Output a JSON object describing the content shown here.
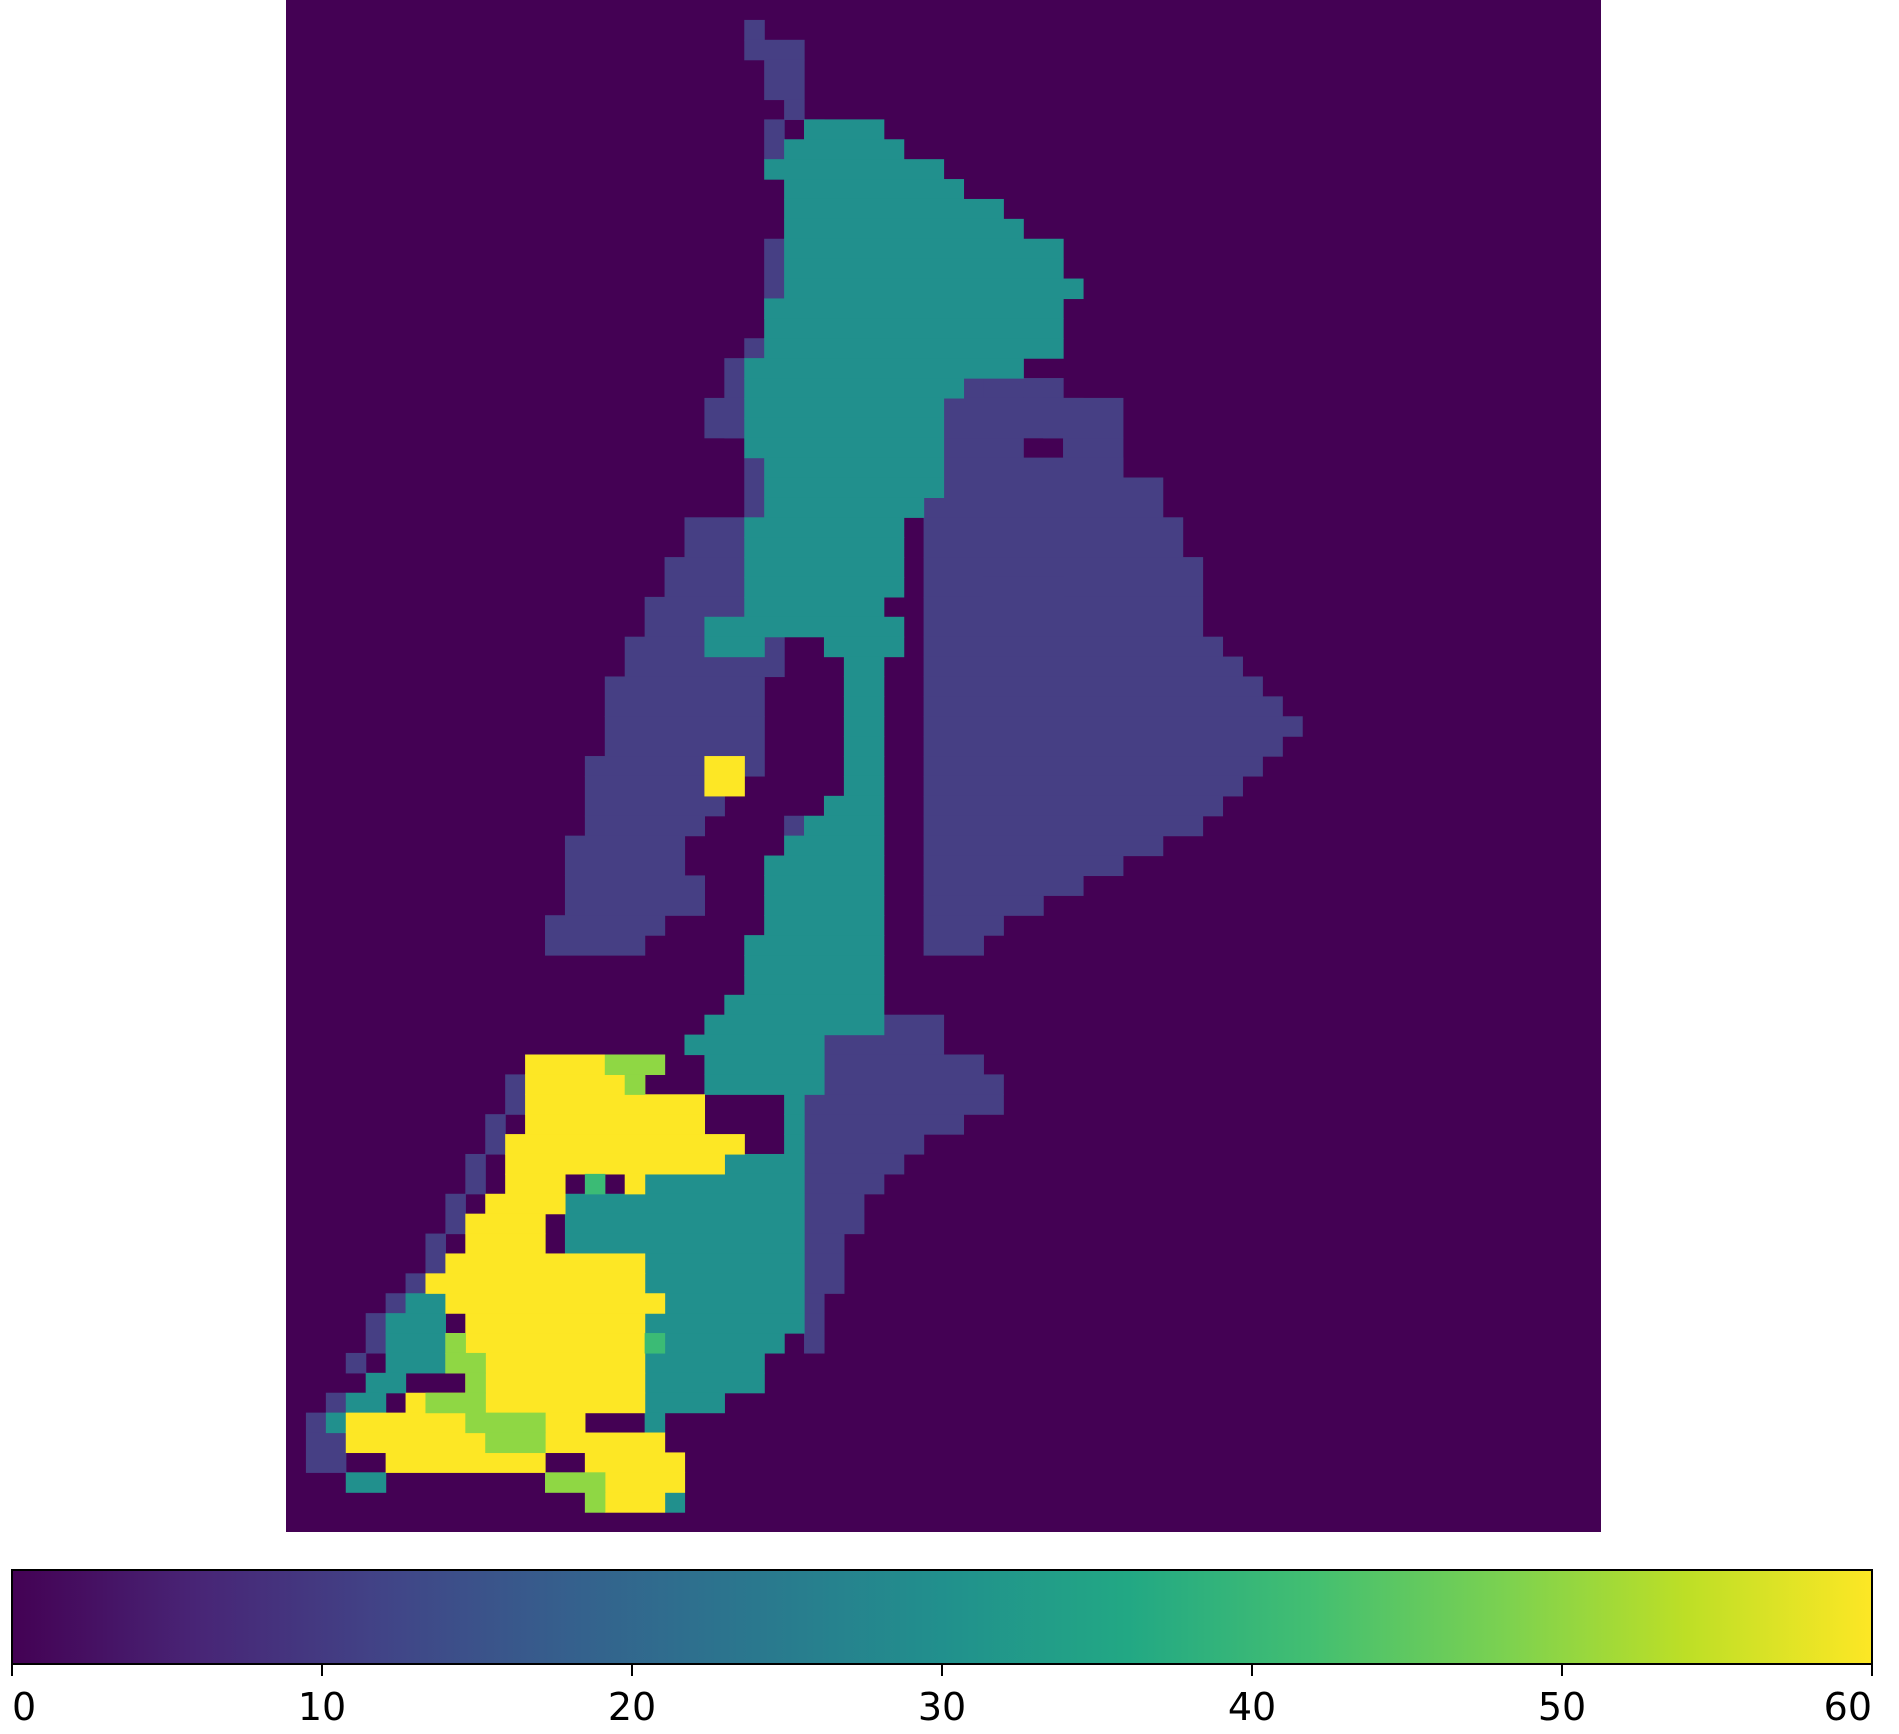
{
  "chart_data": {
    "type": "heatmap",
    "title": "",
    "xlabel": "",
    "ylabel": "",
    "colormap": "viridis",
    "background_value": 0,
    "grid": false,
    "axes_visible": false,
    "nx": 66,
    "ny": 77,
    "regions": [
      {
        "value": 12,
        "color": "#463f84",
        "cells": [
          [
            23,
            1,
            1,
            1
          ],
          [
            23,
            2,
            3,
            1
          ],
          [
            24,
            3,
            2,
            2
          ],
          [
            25,
            5,
            1,
            1
          ],
          [
            24,
            6,
            1,
            2
          ],
          [
            26,
            6,
            1,
            1
          ],
          [
            24,
            12,
            1,
            3
          ],
          [
            24,
            15,
            1,
            1
          ],
          [
            23,
            17,
            2,
            3
          ],
          [
            23,
            23,
            1,
            6
          ],
          [
            30,
            14,
            1,
            1
          ],
          [
            30,
            15,
            3,
            1
          ],
          [
            32,
            16,
            2,
            1
          ],
          [
            33,
            17,
            3,
            1
          ],
          [
            34,
            18,
            3,
            1
          ],
          [
            33,
            19,
            4,
            5
          ],
          [
            33,
            19,
            2,
            1
          ],
          [
            37,
            19,
            2,
            1
          ],
          [
            38,
            20,
            2,
            1
          ],
          [
            38,
            21,
            3,
            1
          ],
          [
            39,
            22,
            3,
            1
          ],
          [
            40,
            23,
            2,
            1
          ],
          [
            33,
            20,
            9,
            2
          ],
          [
            32,
            23,
            10,
            1
          ],
          [
            32,
            24,
            12,
            2
          ],
          [
            32,
            26,
            13,
            2
          ],
          [
            32,
            28,
            14,
            2
          ],
          [
            32,
            30,
            14,
            2
          ],
          [
            32,
            32,
            15,
            1
          ],
          [
            32,
            33,
            16,
            1
          ],
          [
            32,
            34,
            17,
            1
          ],
          [
            32,
            35,
            18,
            1
          ],
          [
            32,
            36,
            19,
            1
          ],
          [
            32,
            37,
            18,
            1
          ],
          [
            32,
            38,
            17,
            1
          ],
          [
            32,
            39,
            16,
            1
          ],
          [
            32,
            40,
            15,
            1
          ],
          [
            32,
            41,
            14,
            1
          ],
          [
            32,
            42,
            12,
            1
          ],
          [
            32,
            43,
            10,
            1
          ],
          [
            32,
            44,
            8,
            1
          ],
          [
            32,
            45,
            6,
            1
          ],
          [
            32,
            46,
            4,
            1
          ],
          [
            32,
            47,
            3,
            1
          ],
          [
            22,
            18,
            2,
            4
          ],
          [
            21,
            20,
            2,
            2
          ],
          [
            20,
            26,
            4,
            2
          ],
          [
            19,
            28,
            5,
            2
          ],
          [
            18,
            30,
            6,
            2
          ],
          [
            17,
            32,
            8,
            2
          ],
          [
            16,
            34,
            8,
            2
          ],
          [
            16,
            36,
            8,
            3
          ],
          [
            15,
            38,
            8,
            1
          ],
          [
            15,
            39,
            7,
            2
          ],
          [
            15,
            41,
            6,
            1
          ],
          [
            14,
            42,
            6,
            2
          ],
          [
            14,
            44,
            7,
            2
          ],
          [
            13,
            46,
            6,
            1
          ],
          [
            13,
            47,
            5,
            1
          ],
          [
            35,
            29,
            4,
            1
          ],
          [
            25,
            41,
            1,
            1
          ],
          [
            27,
            51,
            6,
            2
          ],
          [
            27,
            53,
            8,
            1
          ],
          [
            27,
            54,
            9,
            1
          ],
          [
            26,
            55,
            10,
            1
          ],
          [
            26,
            56,
            8,
            1
          ],
          [
            26,
            57,
            6,
            1
          ],
          [
            26,
            58,
            5,
            1
          ],
          [
            26,
            59,
            4,
            1
          ],
          [
            26,
            60,
            3,
            1
          ],
          [
            26,
            61,
            3,
            1
          ],
          [
            26,
            62,
            2,
            1
          ],
          [
            26,
            63,
            2,
            1
          ],
          [
            26,
            64,
            2,
            1
          ],
          [
            26,
            65,
            1,
            1
          ],
          [
            26,
            66,
            1,
            1
          ],
          [
            26,
            67,
            1,
            1
          ],
          [
            11,
            54,
            1,
            2
          ],
          [
            10,
            56,
            1,
            2
          ],
          [
            9,
            58,
            1,
            2
          ],
          [
            8,
            60,
            1,
            2
          ],
          [
            7,
            62,
            1,
            2
          ],
          [
            6,
            64,
            1,
            1
          ],
          [
            5,
            65,
            1,
            1
          ],
          [
            4,
            66,
            1,
            2
          ],
          [
            3,
            68,
            1,
            1
          ],
          [
            2,
            70,
            1,
            1
          ],
          [
            1,
            71,
            1,
            1
          ],
          [
            1,
            72,
            2,
            2
          ]
        ]
      },
      {
        "value": 30,
        "color": "#21908d",
        "cells": [
          [
            26,
            6,
            4,
            1
          ],
          [
            25,
            7,
            6,
            1
          ],
          [
            24,
            8,
            9,
            1
          ],
          [
            25,
            9,
            9,
            1
          ],
          [
            25,
            10,
            11,
            1
          ],
          [
            25,
            11,
            12,
            1
          ],
          [
            25,
            12,
            14,
            1
          ],
          [
            25,
            13,
            14,
            1
          ],
          [
            25,
            14,
            15,
            1
          ],
          [
            24,
            15,
            15,
            1
          ],
          [
            24,
            16,
            15,
            1
          ],
          [
            24,
            17,
            15,
            1
          ],
          [
            23,
            18,
            14,
            1
          ],
          [
            23,
            19,
            11,
            1
          ],
          [
            23,
            20,
            10,
            1
          ],
          [
            23,
            21,
            10,
            1
          ],
          [
            23,
            22,
            10,
            1
          ],
          [
            24,
            23,
            9,
            1
          ],
          [
            24,
            24,
            9,
            1
          ],
          [
            24,
            25,
            8,
            1
          ],
          [
            23,
            26,
            8,
            1
          ],
          [
            23,
            27,
            8,
            1
          ],
          [
            23,
            28,
            8,
            1
          ],
          [
            23,
            29,
            8,
            1
          ],
          [
            23,
            30,
            7,
            1
          ],
          [
            21,
            31,
            10,
            1
          ],
          [
            21,
            32,
            3,
            1
          ],
          [
            27,
            32,
            4,
            1
          ],
          [
            28,
            33,
            2,
            1
          ],
          [
            28,
            34,
            2,
            1
          ],
          [
            28,
            35,
            2,
            1
          ],
          [
            28,
            36,
            2,
            1
          ],
          [
            28,
            37,
            2,
            1
          ],
          [
            28,
            38,
            2,
            1
          ],
          [
            28,
            39,
            2,
            1
          ],
          [
            27,
            40,
            3,
            1
          ],
          [
            26,
            41,
            4,
            1
          ],
          [
            25,
            42,
            5,
            1
          ],
          [
            24,
            43,
            6,
            1
          ],
          [
            24,
            44,
            6,
            1
          ],
          [
            24,
            45,
            6,
            1
          ],
          [
            24,
            46,
            6,
            1
          ],
          [
            23,
            47,
            7,
            1
          ],
          [
            23,
            48,
            7,
            1
          ],
          [
            23,
            49,
            7,
            1
          ],
          [
            22,
            50,
            8,
            1
          ],
          [
            21,
            51,
            9,
            1
          ],
          [
            20,
            52,
            7,
            1
          ],
          [
            21,
            53,
            6,
            1
          ],
          [
            21,
            54,
            6,
            1
          ],
          [
            25,
            55,
            1,
            1
          ],
          [
            25,
            56,
            1,
            1
          ],
          [
            25,
            57,
            1,
            1
          ],
          [
            21,
            58,
            5,
            1
          ],
          [
            18,
            59,
            8,
            1
          ],
          [
            14,
            60,
            12,
            1
          ],
          [
            14,
            61,
            12,
            1
          ],
          [
            14,
            62,
            12,
            1
          ],
          [
            16,
            63,
            10,
            1
          ],
          [
            18,
            64,
            8,
            1
          ],
          [
            18,
            65,
            8,
            1
          ],
          [
            18,
            66,
            8,
            1
          ],
          [
            18,
            67,
            7,
            1
          ],
          [
            18,
            68,
            6,
            1
          ],
          [
            18,
            69,
            6,
            1
          ],
          [
            18,
            70,
            4,
            1
          ],
          [
            18,
            71,
            1,
            1
          ],
          [
            6,
            65,
            2,
            1
          ],
          [
            5,
            66,
            3,
            1
          ],
          [
            5,
            67,
            3,
            1
          ],
          [
            5,
            68,
            3,
            1
          ],
          [
            4,
            69,
            2,
            1
          ],
          [
            3,
            70,
            2,
            1
          ],
          [
            2,
            71,
            1,
            1
          ],
          [
            3,
            74,
            2,
            1
          ],
          [
            19,
            75,
            1,
            1
          ]
        ]
      },
      {
        "value": 60,
        "color": "#fde725",
        "cells": [
          [
            21,
            38,
            2,
            2
          ],
          [
            12,
            53,
            4,
            1
          ],
          [
            12,
            54,
            6,
            1
          ],
          [
            12,
            55,
            9,
            1
          ],
          [
            12,
            56,
            9,
            1
          ],
          [
            11,
            57,
            12,
            1
          ],
          [
            11,
            58,
            11,
            1
          ],
          [
            11,
            59,
            3,
            1
          ],
          [
            17,
            59,
            1,
            1
          ],
          [
            10,
            60,
            4,
            1
          ],
          [
            9,
            61,
            4,
            1
          ],
          [
            9,
            62,
            4,
            1
          ],
          [
            8,
            63,
            10,
            1
          ],
          [
            7,
            64,
            11,
            1
          ],
          [
            8,
            65,
            11,
            1
          ],
          [
            9,
            66,
            9,
            1
          ],
          [
            8,
            67,
            10,
            1
          ],
          [
            8,
            68,
            10,
            1
          ],
          [
            9,
            69,
            9,
            1
          ],
          [
            6,
            70,
            12,
            1
          ],
          [
            3,
            71,
            6,
            1
          ],
          [
            10,
            71,
            5,
            1
          ],
          [
            3,
            72,
            7,
            1
          ],
          [
            12,
            72,
            7,
            1
          ],
          [
            5,
            73,
            8,
            1
          ],
          [
            15,
            73,
            5,
            1
          ],
          [
            16,
            74,
            4,
            1
          ],
          [
            16,
            75,
            3,
            1
          ]
        ]
      },
      {
        "value": 48,
        "color": "#8fd744",
        "cells": [
          [
            16,
            53,
            3,
            1
          ],
          [
            17,
            54,
            1,
            1
          ],
          [
            8,
            67,
            1,
            1
          ],
          [
            8,
            68,
            2,
            1
          ],
          [
            9,
            69,
            1,
            1
          ],
          [
            7,
            70,
            3,
            1
          ],
          [
            9,
            71,
            4,
            1
          ],
          [
            10,
            72,
            3,
            1
          ],
          [
            13,
            74,
            3,
            1
          ],
          [
            15,
            75,
            1,
            1
          ]
        ]
      },
      {
        "value": 40,
        "color": "#3bbb75",
        "cells": [
          [
            15,
            59,
            1,
            1
          ],
          [
            18,
            67,
            1,
            1
          ]
        ]
      }
    ],
    "colorbar": {
      "orientation": "horizontal",
      "vmin": 0,
      "vmax": 60,
      "ticks": [
        0,
        10,
        20,
        30,
        40,
        50,
        60
      ],
      "tick_labels": [
        "0",
        "10",
        "20",
        "30",
        "40",
        "50",
        "60"
      ],
      "colors": [
        "#440154",
        "#482576",
        "#414487",
        "#35608d",
        "#2a788e",
        "#21908d",
        "#22a884",
        "#43bf71",
        "#7ad151",
        "#bddf26",
        "#fde725"
      ]
    }
  }
}
